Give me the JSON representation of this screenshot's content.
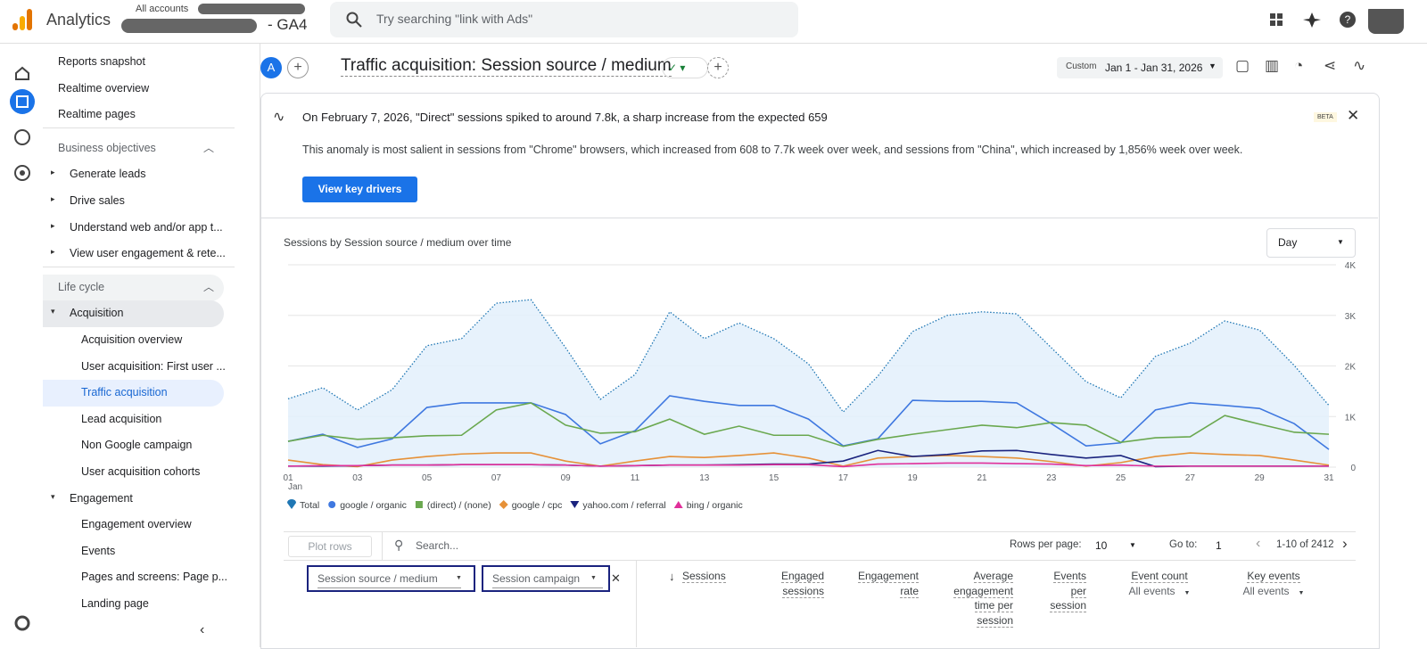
{
  "header": {
    "product": "Analytics",
    "breadcrumb": "All accounts",
    "property": "- GA4",
    "search_placeholder": "Try searching \"link with Ads\""
  },
  "sidebar": {
    "top": [
      "Reports snapshot",
      "Realtime overview",
      "Realtime pages"
    ],
    "business_objectives": {
      "title": "Business objectives",
      "items": [
        "Generate leads",
        "Drive sales",
        "Understand web and/or app t...",
        "View user engagement & rete..."
      ]
    },
    "life_cycle": {
      "title": "Life cycle",
      "groups": [
        {
          "title": "Acquisition",
          "items": [
            "Acquisition overview",
            "User acquisition: First user ...",
            "Traffic acquisition",
            "Lead acquisition",
            "Non Google campaign",
            "User acquisition cohorts"
          ]
        },
        {
          "title": "Engagement",
          "items": [
            "Engagement overview",
            "Events",
            "Pages and screens: Page p...",
            "Landing page"
          ]
        }
      ]
    }
  },
  "toolbar": {
    "avatar": "A",
    "title": "Traffic acquisition: Session source / medium",
    "date_label": "Custom",
    "date_range": "Jan 1 - Jan 31, 2026"
  },
  "insight": {
    "headline": "On February 7, 2026, \"Direct\" sessions spiked to around 7.8k, a sharp increase from the expected 659",
    "badge": "BETA",
    "body": "This anomaly is most salient in sessions from \"Chrome\" browsers, which increased from 608 to 7.7k week over week, and sessions from \"China\", which increased by 1,856% week over week.",
    "button": "View key drivers"
  },
  "chart_data": {
    "type": "line",
    "title": "Sessions by Session source / medium over time",
    "granularity": "Day",
    "categories": [
      "01",
      null,
      "03",
      null,
      "05",
      null,
      "07",
      null,
      "09",
      null,
      "11",
      null,
      "13",
      null,
      "15",
      null,
      "17",
      null,
      "19",
      null,
      "21",
      null,
      "23",
      null,
      "25",
      null,
      "27",
      null,
      "29",
      null,
      "31"
    ],
    "x_sublabel": "Jan",
    "ylim": [
      0,
      4000
    ],
    "yticks": [
      0,
      {
        "value": 1000,
        "label": "1K"
      },
      {
        "value": 2000,
        "label": "2K"
      },
      {
        "value": 3000,
        "label": "3K"
      },
      {
        "value": 4000,
        "label": "4K"
      }
    ],
    "grid": true,
    "legend": "bottom",
    "series": [
      {
        "name": "Total",
        "color": "#1f77b4",
        "marker": "pin",
        "line_style": "dotted",
        "fill_area": true,
        "values": [
          1350,
          1570,
          1130,
          1530,
          2400,
          2540,
          3240,
          3310,
          2360,
          1340,
          1830,
          3070,
          2540,
          2850,
          2540,
          2040,
          1090,
          1800,
          2680,
          3000,
          3070,
          3030,
          2360,
          1690,
          1370,
          2190,
          2450,
          2890,
          2710,
          2010,
          1220
        ]
      },
      {
        "name": "google / organic",
        "color": "#3f78e0",
        "marker": "circle",
        "values": [
          510,
          650,
          390,
          560,
          1180,
          1270,
          1270,
          1270,
          1040,
          460,
          720,
          1410,
          1300,
          1220,
          1220,
          950,
          420,
          560,
          1320,
          1300,
          1300,
          1270,
          860,
          420,
          480,
          1130,
          1270,
          1220,
          1160,
          860,
          350
        ]
      },
      {
        "name": "(direct) / (none)",
        "color": "#6aa84f",
        "marker": "square",
        "values": [
          510,
          630,
          550,
          580,
          620,
          630,
          1130,
          1270,
          830,
          670,
          700,
          950,
          650,
          810,
          630,
          630,
          410,
          550,
          650,
          740,
          830,
          780,
          880,
          830,
          490,
          580,
          600,
          1020,
          850,
          690,
          650
        ]
      },
      {
        "name": "google / cpc",
        "color": "#e69138",
        "marker": "diamond",
        "values": [
          140,
          50,
          10,
          140,
          210,
          260,
          280,
          280,
          120,
          20,
          120,
          210,
          190,
          230,
          280,
          180,
          20,
          180,
          210,
          230,
          210,
          180,
          110,
          20,
          90,
          210,
          280,
          250,
          230,
          140,
          40
        ]
      },
      {
        "name": "yahoo.com / referral",
        "color": "#1a237e",
        "marker": "triangle-down",
        "values": [
          20,
          20,
          30,
          40,
          40,
          50,
          50,
          50,
          40,
          20,
          30,
          40,
          40,
          50,
          60,
          60,
          120,
          330,
          210,
          250,
          320,
          330,
          250,
          180,
          230,
          10,
          20,
          20,
          20,
          20,
          20
        ]
      },
      {
        "name": "bing / organic",
        "color": "#e0309a",
        "marker": "triangle-up",
        "values": [
          20,
          30,
          30,
          40,
          40,
          50,
          50,
          50,
          40,
          20,
          30,
          40,
          40,
          40,
          50,
          50,
          10,
          60,
          70,
          80,
          80,
          70,
          60,
          30,
          40,
          20,
          20,
          20,
          20,
          20,
          20
        ]
      }
    ]
  },
  "table": {
    "plot_rows": "Plot rows",
    "search_placeholder": "Search...",
    "rows_per_page_label": "Rows per page:",
    "rows_per_page": "10",
    "goto_label": "Go to:",
    "goto": "1",
    "range": "1-10 of 2412",
    "dimensions": [
      "Session source / medium",
      "Session campaign"
    ],
    "columns": [
      {
        "label": "Sessions"
      },
      {
        "label": "Engaged sessions"
      },
      {
        "label": "Engagement rate"
      },
      {
        "label": "Average engagement time per session"
      },
      {
        "label": "Events per session"
      },
      {
        "label": "Event count",
        "sub": "All events"
      },
      {
        "label": "Key events",
        "sub": "All events"
      }
    ]
  }
}
